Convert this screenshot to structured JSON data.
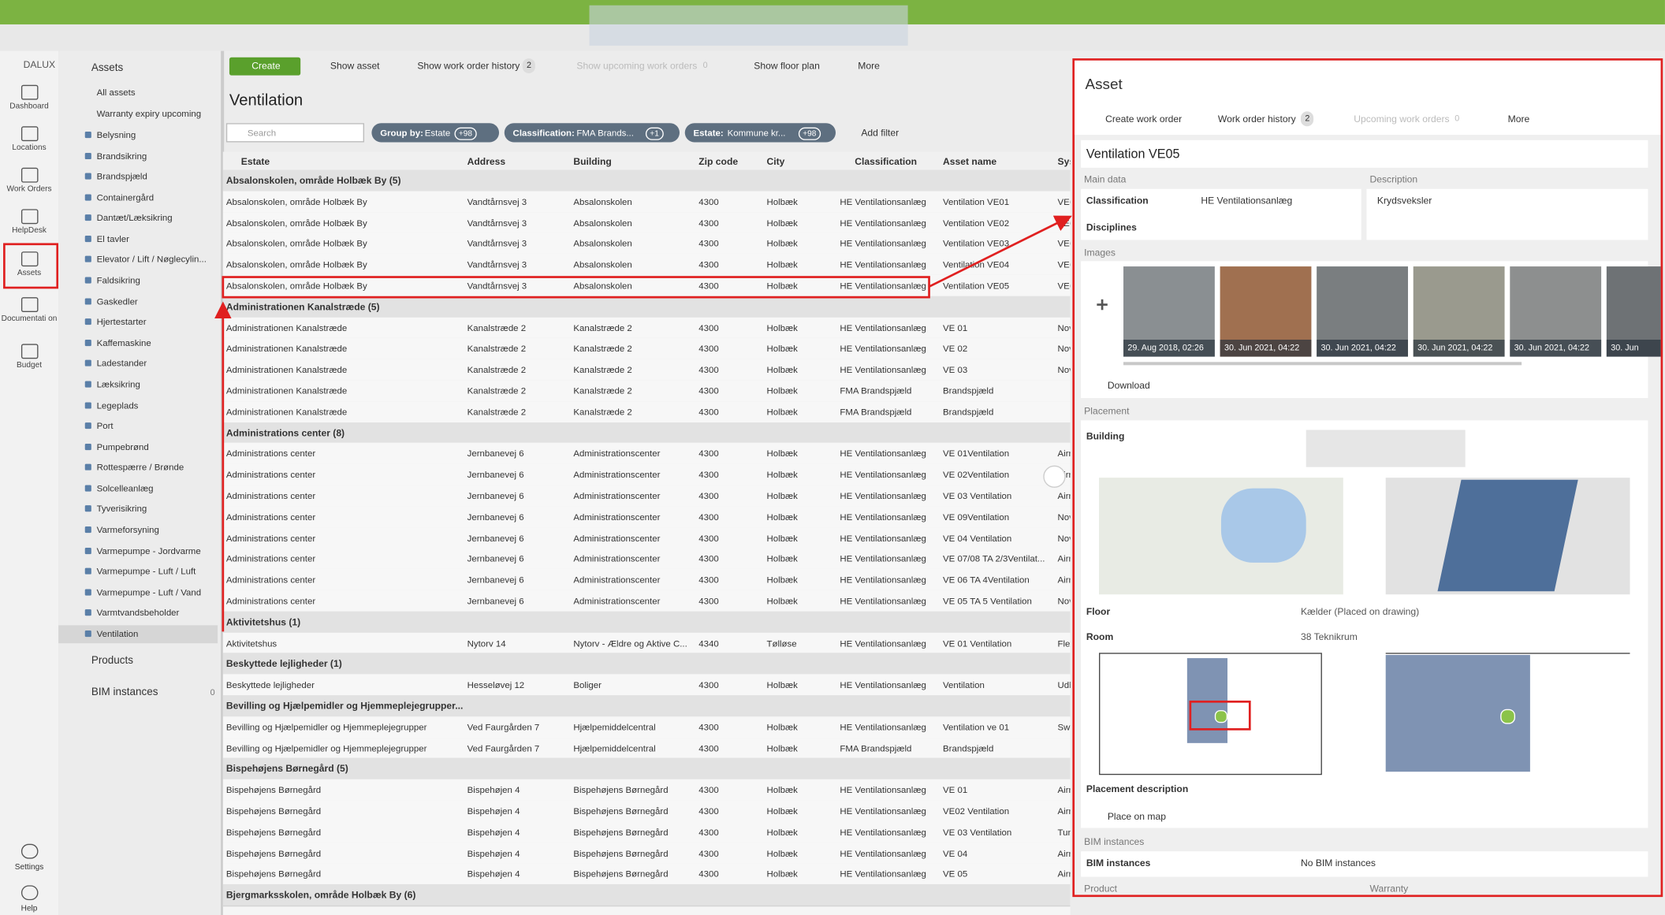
{
  "nav": {
    "logo": "DALUX",
    "items": [
      "Dashboard",
      "Locations",
      "Work Orders",
      "HelpDesk",
      "Assets",
      "Documentati on",
      "Budget"
    ],
    "bottom": [
      "Settings",
      "Help"
    ]
  },
  "sidebar": {
    "title": "Assets",
    "items": [
      "All assets",
      "Warranty expiry upcoming",
      "Belysning",
      "Brandsikring",
      "Brandspjæld",
      "Containergård",
      "Dantæt/Læksikring",
      "El tavler",
      "Elevator / Lift / Nøglecylin...",
      "Faldsikring",
      "Gaskedler",
      "Hjertestarter",
      "Kaffemaskine",
      "Ladestander",
      "Læksikring",
      "Legeplads",
      "Port",
      "Pumpebrønd",
      "Rottespærre / Brønde",
      "Solcelleanlæg",
      "Tyverisikring",
      "Varmeforsyning",
      "Varmepumpe - Jordvarme",
      "Varmepumpe - Luft / Luft",
      "Varmepumpe - Luft / Vand",
      "Varmtvandsbeholder",
      "Ventilation"
    ],
    "products": "Products",
    "bim": "BIM instances",
    "bim_count": "0"
  },
  "toolbar": {
    "create": "Create",
    "show_asset": "Show asset",
    "history": "Show work order history",
    "history_count": "2",
    "upcoming": "Show upcoming work orders",
    "upcoming_count": "0",
    "floor_plan": "Show floor plan",
    "more": "More"
  },
  "page": {
    "title": "Ventilation",
    "search": "Search",
    "filters": [
      {
        "key": "Group by:",
        "value": "Estate",
        "count": "+98"
      },
      {
        "key": "Classification:",
        "value": "FMA Brands...",
        "count": "+1"
      },
      {
        "key": "Estate:",
        "value": "Kommune kr...",
        "count": "+98"
      }
    ],
    "add_filter": "Add filter"
  },
  "table": {
    "columns": [
      "Estate",
      "Address",
      "Building",
      "Zip code",
      "City",
      "Classification",
      "Asset name",
      "Sys"
    ],
    "groups": [
      {
        "label": "Absalonskolen, område Holbæk By (5)",
        "rows": [
          [
            "Absalonskolen, område Holbæk By",
            "Vandtårnsvej 3",
            "Absalonskolen",
            "4300",
            "Holbæk",
            "HE Ventilationsanlæg",
            "Ventilation VE01",
            "VEC"
          ],
          [
            "Absalonskolen, område Holbæk By",
            "Vandtårnsvej 3",
            "Absalonskolen",
            "4300",
            "Holbæk",
            "HE Ventilationsanlæg",
            "Ventilation VE02",
            "VEC"
          ],
          [
            "Absalonskolen, område Holbæk By",
            "Vandtårnsvej 3",
            "Absalonskolen",
            "4300",
            "Holbæk",
            "HE Ventilationsanlæg",
            "Ventilation VE03",
            "VEC"
          ],
          [
            "Absalonskolen, område Holbæk By",
            "Vandtårnsvej 3",
            "Absalonskolen",
            "4300",
            "Holbæk",
            "HE Ventilationsanlæg",
            "Ventilation VE04",
            "VEC"
          ],
          [
            "Absalonskolen, område Holbæk By",
            "Vandtårnsvej 3",
            "Absalonskolen",
            "4300",
            "Holbæk",
            "HE Ventilationsanlæg",
            "Ventilation VE05",
            "VEC"
          ]
        ]
      },
      {
        "label": "Administrationen Kanalstræde (5)",
        "rows": [
          [
            "Administrationen Kanalstræde",
            "Kanalstræde 2",
            "Kanalstræde 2",
            "4300",
            "Holbæk",
            "HE Ventilationsanlæg",
            "VE 01",
            "Nov"
          ],
          [
            "Administrationen Kanalstræde",
            "Kanalstræde 2",
            "Kanalstræde 2",
            "4300",
            "Holbæk",
            "HE Ventilationsanlæg",
            "VE 02",
            "Nov"
          ],
          [
            "Administrationen Kanalstræde",
            "Kanalstræde 2",
            "Kanalstræde 2",
            "4300",
            "Holbæk",
            "HE Ventilationsanlæg",
            "VE 03",
            "Nov"
          ],
          [
            "Administrationen Kanalstræde",
            "Kanalstræde 2",
            "Kanalstræde 2",
            "4300",
            "Holbæk",
            "FMA Brandspjæld",
            "Brandspjæld"
          ],
          [
            "Administrationen Kanalstræde",
            "Kanalstræde 2",
            "Kanalstræde 2",
            "4300",
            "Holbæk",
            "FMA Brandspjæld",
            "Brandspjæld"
          ]
        ]
      },
      {
        "label": "Administrations center (8)",
        "rows": [
          [
            "Administrations center",
            "Jernbanevej 6",
            "Administrationscenter",
            "4300",
            "Holbæk",
            "HE Ventilationsanlæg",
            "VE 01Ventilation",
            "Airr"
          ],
          [
            "Administrations center",
            "Jernbanevej 6",
            "Administrationscenter",
            "4300",
            "Holbæk",
            "HE Ventilationsanlæg",
            "VE 02Ventilation",
            "Airr"
          ],
          [
            "Administrations center",
            "Jernbanevej 6",
            "Administrationscenter",
            "4300",
            "Holbæk",
            "HE Ventilationsanlæg",
            "VE 03 Ventilation",
            "Airr"
          ],
          [
            "Administrations center",
            "Jernbanevej 6",
            "Administrationscenter",
            "4300",
            "Holbæk",
            "HE Ventilationsanlæg",
            "VE 09Ventilation",
            "Nov"
          ],
          [
            "Administrations center",
            "Jernbanevej 6",
            "Administrationscenter",
            "4300",
            "Holbæk",
            "HE Ventilationsanlæg",
            "VE 04 Ventilation",
            "Nov"
          ],
          [
            "Administrations center",
            "Jernbanevej 6",
            "Administrationscenter",
            "4300",
            "Holbæk",
            "HE Ventilationsanlæg",
            "VE 07/08 TA 2/3Ventilat...",
            "Airr"
          ],
          [
            "Administrations center",
            "Jernbanevej 6",
            "Administrationscenter",
            "4300",
            "Holbæk",
            "HE Ventilationsanlæg",
            "VE 06 TA 4Ventilation",
            "Airr"
          ],
          [
            "Administrations center",
            "Jernbanevej 6",
            "Administrationscenter",
            "4300",
            "Holbæk",
            "HE Ventilationsanlæg",
            "VE 05 TA 5 Ventilation",
            "Nov"
          ]
        ]
      },
      {
        "label": "Aktivitetshus (1)",
        "rows": [
          [
            "Aktivitetshus",
            "Nytorv 14",
            "Nytorv - Ældre og Aktive C...",
            "4340",
            "Tølløse",
            "HE Ventilationsanlæg",
            "VE 01 Ventilation",
            "Flex"
          ]
        ]
      },
      {
        "label": "Beskyttede lejligheder (1)",
        "rows": [
          [
            "Beskyttede lejligheder",
            "Hesseløvej 12",
            "Boliger",
            "4300",
            "Holbæk",
            "HE Ventilationsanlæg",
            "Ventilation",
            "Udb"
          ]
        ]
      },
      {
        "label": "Bevilling og Hjælpemidler og Hjemmeplejegrupper...",
        "rows": [
          [
            "Bevilling og Hjælpemidler og Hjemmeplejegrupper",
            "Ved Faurgården 7",
            "Hjælpemiddelcentral",
            "4300",
            "Holbæk",
            "HE Ventilationsanlæg",
            "Ventilation ve 01",
            "Swe"
          ],
          [
            "Bevilling og Hjælpemidler og Hjemmeplejegrupper",
            "Ved Faurgården 7",
            "Hjælpemiddelcentral",
            "4300",
            "Holbæk",
            "FMA Brandspjæld",
            "Brandspjæld"
          ]
        ]
      },
      {
        "label": "Bispehøjens Børnegård (5)",
        "rows": [
          [
            "Bispehøjens Børnegård",
            "Bispehøjen 4",
            "Bispehøjens Børnegård",
            "4300",
            "Holbæk",
            "HE Ventilationsanlæg",
            "VE 01",
            "Airr"
          ],
          [
            "Bispehøjens Børnegård",
            "Bispehøjen 4",
            "Bispehøjens Børnegård",
            "4300",
            "Holbæk",
            "HE Ventilationsanlæg",
            "VE02 Ventilation",
            "Airr"
          ],
          [
            "Bispehøjens Børnegård",
            "Bispehøjen 4",
            "Bispehøjens Børnegård",
            "4300",
            "Holbæk",
            "HE Ventilationsanlæg",
            "VE 03 Ventilation",
            "Turr"
          ],
          [
            "Bispehøjens Børnegård",
            "Bispehøjen 4",
            "Bispehøjens Børnegård",
            "4300",
            "Holbæk",
            "HE Ventilationsanlæg",
            "VE 04",
            "Airr"
          ],
          [
            "Bispehøjens Børnegård",
            "Bispehøjen 4",
            "Bispehøjens Børnegård",
            "4300",
            "Holbæk",
            "HE Ventilationsanlæg",
            "VE 05",
            "Airr"
          ]
        ]
      },
      {
        "label": "Bjergmarksskolen, område Holbæk By (6)",
        "rows": []
      }
    ]
  },
  "panel": {
    "title": "Asset",
    "actions": {
      "create": "Create work order",
      "history": "Work order history",
      "history_count": "2",
      "upcoming": "Upcoming work orders",
      "upcoming_count": "0",
      "more": "More"
    },
    "name": "Ventilation VE05",
    "main_data": "Main data",
    "classification_label": "Classification",
    "classification": "HE Ventilationsanlæg",
    "disciplines_label": "Disciplines",
    "description_label": "Description",
    "description": "Krydsveksler",
    "images_label": "Images",
    "images": [
      "29. Aug 2018, 02:26",
      "30. Jun 2021, 04:22",
      "30. Jun 2021, 04:22",
      "30. Jun 2021, 04:22",
      "30. Jun 2021, 04:22",
      "30. Jun"
    ],
    "download": "Download",
    "placement": "Placement",
    "building_label": "Building",
    "floor_label": "Floor",
    "floor": "Kælder (Placed on drawing)",
    "room_label": "Room",
    "room": "38 Teknikrum",
    "placement_description": "Placement description",
    "place_on_map": "Place on map",
    "bim_section": "BIM instances",
    "bim_label": "BIM instances",
    "bim_value": "No BIM instances",
    "product": "Product",
    "warranty": "Warranty"
  }
}
